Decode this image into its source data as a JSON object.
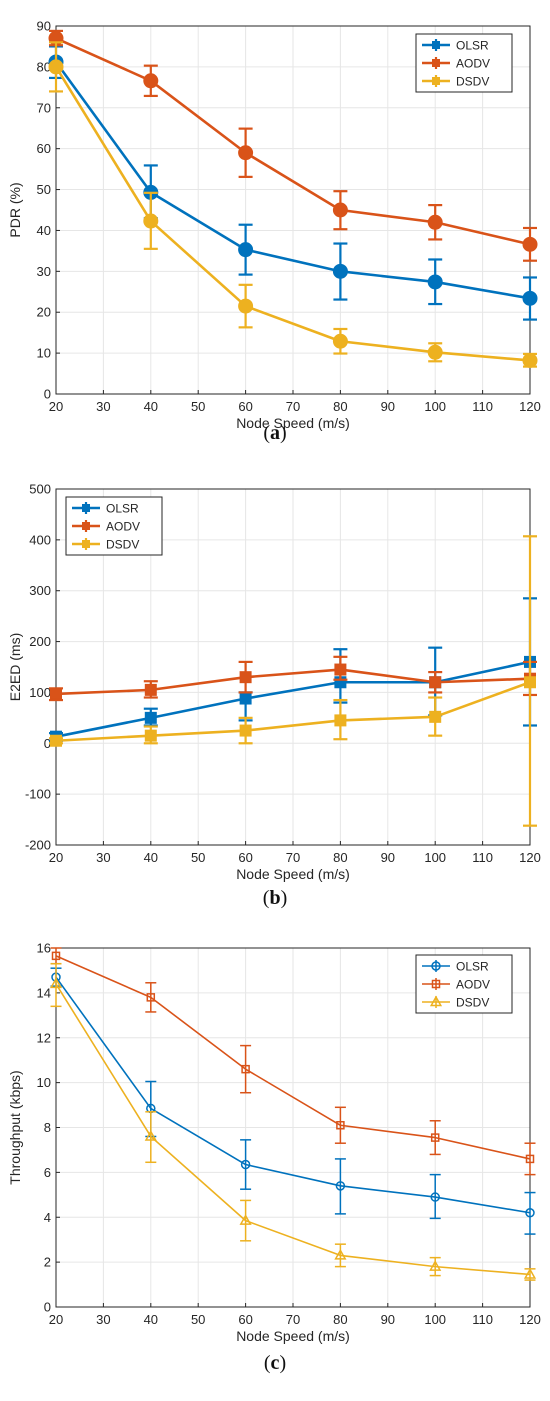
{
  "chart_data": [
    {
      "type": "line",
      "panel_label": "a",
      "xlabel": "Node Speed (m/s)",
      "ylabel": "PDR (%)",
      "xlim": [
        20,
        120
      ],
      "ylim": [
        0,
        90
      ],
      "xticks": [
        20,
        30,
        40,
        50,
        60,
        70,
        80,
        90,
        100,
        110,
        120
      ],
      "yticks": [
        0,
        10,
        20,
        30,
        40,
        50,
        60,
        70,
        80,
        90
      ],
      "grid": true,
      "legend_position": "top-right",
      "x": [
        20,
        40,
        60,
        80,
        100,
        120
      ],
      "series": [
        {
          "name": "OLSR",
          "color": "#0072BD",
          "marker": "circle-filled",
          "values": [
            81.2,
            49.3,
            35.3,
            30.0,
            27.4,
            23.4
          ],
          "err_low": [
            77.3,
            43.0,
            29.2,
            23.1,
            22.0,
            18.2
          ],
          "err_high": [
            85.0,
            55.9,
            41.4,
            36.8,
            32.9,
            28.5
          ]
        },
        {
          "name": "AODV",
          "color": "#D95319",
          "marker": "circle-filled",
          "values": [
            87.0,
            76.6,
            59.0,
            45.0,
            42.0,
            36.6
          ],
          "err_low": [
            85.3,
            72.9,
            53.1,
            40.3,
            37.8,
            32.6
          ],
          "err_high": [
            88.8,
            80.3,
            64.9,
            49.6,
            46.2,
            40.6
          ]
        },
        {
          "name": "DSDV",
          "color": "#EDB120",
          "marker": "circle-filled",
          "values": [
            80.0,
            42.3,
            21.5,
            12.9,
            10.2,
            8.2
          ],
          "err_low": [
            74.0,
            35.5,
            16.3,
            9.9,
            8.0,
            6.7
          ],
          "err_high": [
            86.0,
            49.2,
            26.7,
            15.9,
            12.4,
            9.8
          ]
        }
      ]
    },
    {
      "type": "line",
      "panel_label": "b",
      "xlabel": "Node Speed (m/s)",
      "ylabel": "E2ED (ms)",
      "xlim": [
        20,
        120
      ],
      "ylim": [
        -200,
        500
      ],
      "xticks": [
        20,
        30,
        40,
        50,
        60,
        70,
        80,
        90,
        100,
        110,
        120
      ],
      "yticks": [
        -200,
        -100,
        0,
        100,
        200,
        300,
        400,
        500
      ],
      "grid": true,
      "legend_position": "top-left",
      "x": [
        20,
        40,
        60,
        80,
        100,
        120
      ],
      "series": [
        {
          "name": "OLSR",
          "color": "#0072BD",
          "marker": "square-filled",
          "values": [
            13,
            50,
            88,
            120,
            120,
            160
          ],
          "err_low": [
            5,
            35,
            45,
            80,
            55,
            35
          ],
          "err_high": [
            20,
            68,
            100,
            185,
            188,
            285
          ]
        },
        {
          "name": "AODV",
          "color": "#D95319",
          "marker": "square-filled",
          "values": [
            97,
            105,
            130,
            145,
            120,
            127
          ],
          "err_low": [
            85,
            90,
            100,
            125,
            100,
            95
          ],
          "err_high": [
            108,
            122,
            160,
            170,
            140,
            160
          ]
        },
        {
          "name": "DSDV",
          "color": "#EDB120",
          "marker": "square-filled",
          "values": [
            5,
            15,
            25,
            45,
            52,
            120
          ],
          "err_low": [
            0,
            0,
            0,
            8,
            15,
            -162
          ],
          "err_high": [
            10,
            33,
            50,
            85,
            90,
            407
          ]
        }
      ]
    },
    {
      "type": "line",
      "panel_label": "c",
      "xlabel": "Node Speed (m/s)",
      "ylabel": "Throughput (kbps)",
      "xlim": [
        20,
        120
      ],
      "ylim": [
        0,
        16
      ],
      "xticks": [
        20,
        30,
        40,
        50,
        60,
        70,
        80,
        90,
        100,
        110,
        120
      ],
      "yticks": [
        0,
        2,
        4,
        6,
        8,
        10,
        12,
        14,
        16
      ],
      "grid": true,
      "legend_position": "top-right",
      "x": [
        20,
        40,
        60,
        80,
        100,
        120
      ],
      "series": [
        {
          "name": "OLSR",
          "color": "#0072BD",
          "marker": "circle-open",
          "values": [
            14.7,
            8.85,
            6.35,
            5.4,
            4.9,
            4.2
          ],
          "err_low": [
            14.3,
            7.6,
            5.25,
            4.15,
            3.95,
            3.25
          ],
          "err_high": [
            15.1,
            10.05,
            7.45,
            6.6,
            5.9,
            5.1
          ]
        },
        {
          "name": "AODV",
          "color": "#D95319",
          "marker": "square-open",
          "values": [
            15.65,
            13.8,
            10.6,
            8.1,
            7.55,
            6.6
          ],
          "err_low": [
            15.3,
            13.15,
            9.55,
            7.3,
            6.8,
            5.9
          ],
          "err_high": [
            16.0,
            14.45,
            11.65,
            8.9,
            8.3,
            7.3
          ]
        },
        {
          "name": "DSDV",
          "color": "#EDB120",
          "marker": "triangle-open",
          "values": [
            14.4,
            7.6,
            3.85,
            2.3,
            1.8,
            1.45
          ],
          "err_low": [
            13.4,
            6.45,
            2.95,
            1.8,
            1.4,
            1.2
          ],
          "err_high": [
            15.3,
            8.7,
            4.75,
            2.8,
            2.2,
            1.7
          ]
        }
      ]
    }
  ]
}
